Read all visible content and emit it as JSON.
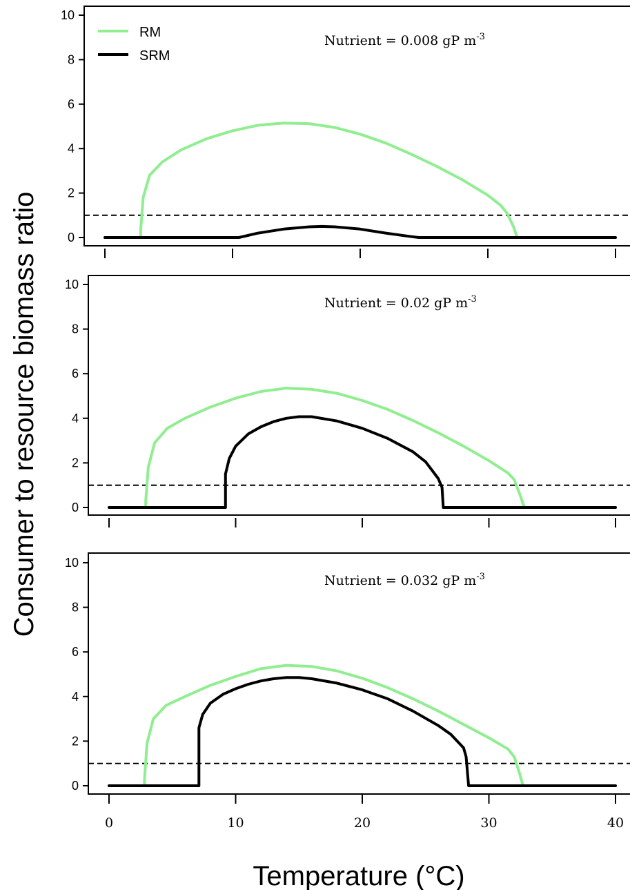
{
  "figure": {
    "ylabel": "Consumer to resource biomass ratio",
    "xlabel": "Temperature (°C)"
  },
  "legend": {
    "placement": "top-left of first panel",
    "items": [
      {
        "label": "RM",
        "color": "#90ee90"
      },
      {
        "label": "SRM",
        "color": "#000000"
      }
    ]
  },
  "chart_data": [
    {
      "type": "line",
      "annotation": {
        "prefix": "Nutrient = 0.008 gP m",
        "sup": "-3"
      },
      "xlim": [
        0,
        40
      ],
      "ylim": [
        0,
        10
      ],
      "yticks": [
        "0",
        "2",
        "4",
        "6",
        "8",
        "10"
      ],
      "xticks": [],
      "reference_line": {
        "y": 1,
        "style": "dashed"
      },
      "series": [
        {
          "name": "RM",
          "color": "#90ee90",
          "x": [
            0,
            2.8,
            2.8,
            3.0,
            3.5,
            4.5,
            6,
            8,
            10,
            12,
            14,
            16,
            18,
            20,
            22,
            24,
            26,
            28,
            30,
            31.0,
            31.5,
            32.0,
            32.3,
            40
          ],
          "y": [
            0,
            0,
            0.3,
            1.8,
            2.8,
            3.4,
            3.95,
            4.45,
            4.8,
            5.05,
            5.15,
            5.12,
            4.95,
            4.65,
            4.25,
            3.75,
            3.2,
            2.6,
            1.9,
            1.45,
            1.1,
            0.5,
            0,
            0
          ]
        },
        {
          "name": "SRM",
          "color": "#000000",
          "x": [
            0,
            10.5,
            12,
            14,
            16,
            17,
            18,
            20,
            22,
            24,
            24.6,
            40
          ],
          "y": [
            0,
            0,
            0.2,
            0.38,
            0.48,
            0.5,
            0.48,
            0.38,
            0.2,
            0.04,
            0,
            0
          ]
        }
      ]
    },
    {
      "type": "line",
      "annotation": {
        "prefix": "Nutrient = 0.02 gP m",
        "sup": "-3"
      },
      "xlim": [
        0,
        40
      ],
      "ylim": [
        0,
        10
      ],
      "yticks": [
        "0",
        "2",
        "4",
        "6",
        "8",
        "10"
      ],
      "xticks": [],
      "reference_line": {
        "y": 1,
        "style": "dashed"
      },
      "series": [
        {
          "name": "RM",
          "color": "#90ee90",
          "x": [
            0,
            2.9,
            2.9,
            3.1,
            3.6,
            4.6,
            6,
            8,
            10,
            12,
            14,
            16,
            18,
            20,
            22,
            24,
            26,
            28,
            30,
            31.5,
            32.0,
            32.5,
            32.8,
            40
          ],
          "y": [
            0,
            0,
            0.3,
            1.8,
            2.9,
            3.55,
            4.0,
            4.5,
            4.9,
            5.2,
            5.35,
            5.3,
            5.12,
            4.8,
            4.4,
            3.9,
            3.35,
            2.75,
            2.1,
            1.55,
            1.25,
            0.5,
            0,
            0
          ]
        },
        {
          "name": "SRM",
          "color": "#000000",
          "x": [
            0,
            9.2,
            9.2,
            9.5,
            10,
            11,
            12,
            13,
            14,
            15,
            16,
            18,
            20,
            22,
            24,
            25,
            26,
            26.3,
            26.4,
            40
          ],
          "y": [
            0,
            0,
            1.5,
            2.2,
            2.75,
            3.3,
            3.62,
            3.85,
            4.0,
            4.07,
            4.07,
            3.88,
            3.55,
            3.1,
            2.5,
            2.05,
            1.3,
            0.9,
            0,
            0
          ]
        }
      ]
    },
    {
      "type": "line",
      "annotation": {
        "prefix": "Nutrient = 0.032 gP m",
        "sup": "-3"
      },
      "xlim": [
        0,
        40
      ],
      "ylim": [
        0,
        10
      ],
      "yticks": [
        "0",
        "2",
        "4",
        "6",
        "8",
        "10"
      ],
      "xticks": [
        "0",
        "10",
        "20",
        "30",
        "40"
      ],
      "reference_line": {
        "y": 1,
        "style": "dashed"
      },
      "series": [
        {
          "name": "RM",
          "color": "#90ee90",
          "x": [
            0,
            2.8,
            2.8,
            3.0,
            3.5,
            4.5,
            6,
            8,
            10,
            12,
            14,
            16,
            18,
            20,
            22,
            24,
            26,
            28,
            30,
            31.5,
            32.0,
            32.4,
            32.7,
            40
          ],
          "y": [
            0,
            0,
            0.3,
            1.9,
            3.0,
            3.6,
            4.0,
            4.5,
            4.9,
            5.25,
            5.4,
            5.35,
            5.15,
            4.82,
            4.4,
            3.9,
            3.35,
            2.75,
            2.15,
            1.65,
            1.3,
            0.6,
            0,
            0
          ]
        },
        {
          "name": "SRM",
          "color": "#000000",
          "x": [
            0,
            7.1,
            7.1,
            7.4,
            8,
            9,
            10,
            11,
            12,
            13,
            14,
            15,
            16,
            18,
            20,
            22,
            24,
            26,
            27,
            28,
            28.2,
            28.4,
            40
          ],
          "y": [
            0,
            0,
            2.6,
            3.2,
            3.7,
            4.1,
            4.35,
            4.55,
            4.7,
            4.8,
            4.85,
            4.85,
            4.8,
            4.6,
            4.3,
            3.9,
            3.35,
            2.7,
            2.3,
            1.7,
            1.3,
            0,
            0
          ]
        }
      ]
    }
  ]
}
